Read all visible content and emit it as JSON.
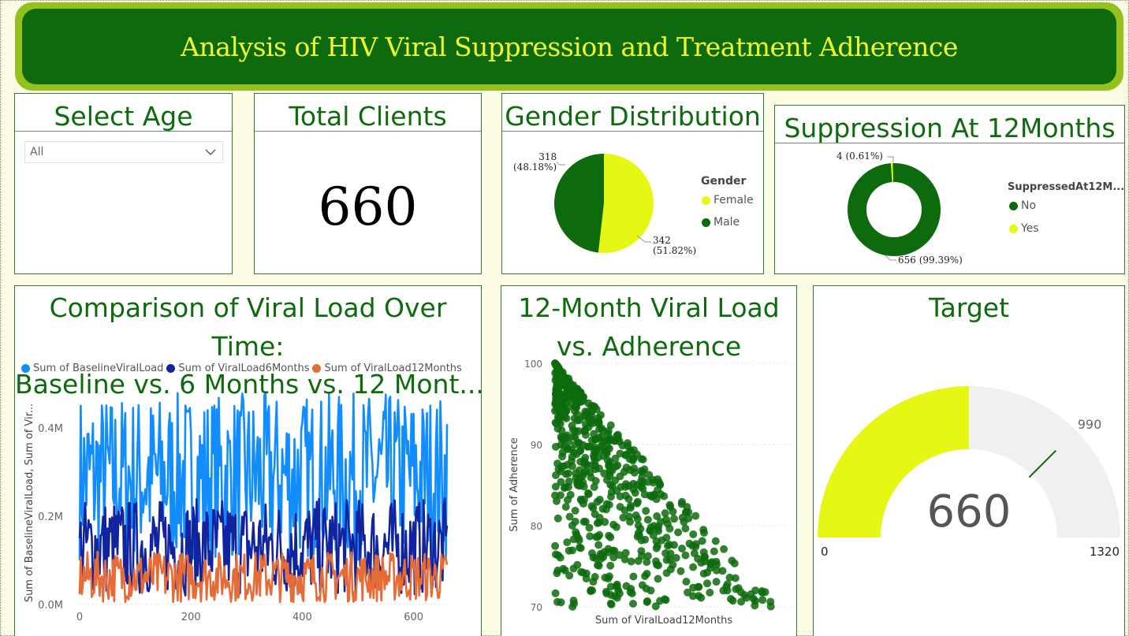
{
  "header": {
    "title": "Analysis of HIV Viral Suppression and Treatment Adherence"
  },
  "age_filter": {
    "title": "Select Age",
    "selected": "All"
  },
  "total_clients": {
    "title": "Total Clients",
    "value": "660"
  },
  "gender": {
    "title": "Gender Distribution",
    "legend_title": "Gender",
    "items": [
      {
        "label": "Female",
        "count": "342",
        "pct": "(51.82%)",
        "value": 342,
        "color": "#e6f714"
      },
      {
        "label": "Male",
        "count": "318",
        "pct": "(48.18%)",
        "value": 318,
        "color": "#0d6b0d"
      }
    ]
  },
  "suppression": {
    "title": "Suppression At 12Months",
    "legend_title": "SuppressedAt12M...",
    "items": [
      {
        "label": "No",
        "text": "656 (99.39%)",
        "value": 656,
        "color": "#0d6b0d"
      },
      {
        "label": "Yes",
        "text": "4 (0.61%)",
        "value": 4,
        "color": "#e6f714"
      }
    ]
  },
  "line_chart": {
    "title_lines": [
      "Comparison of Viral Load Over",
      "Time:",
      "Baseline vs. 6 Months vs. 12 Mont..."
    ],
    "legend": [
      {
        "label": "Sum of BaselineViralLoad",
        "color": "#118dff"
      },
      {
        "label": "Sum of ViralLoad6Months",
        "color": "#12239e"
      },
      {
        "label": "Sum of ViralLoad12Months",
        "color": "#e66c37"
      }
    ],
    "y_axis_label": "Sum of BaselineViralLoad, Sum of Vir...",
    "y_ticks": [
      "0.4M",
      "0.2M",
      "0.0M"
    ],
    "x_ticks": [
      "0",
      "200",
      "400",
      "600"
    ]
  },
  "scatter": {
    "title_lines": [
      "12-Month Viral Load",
      "vs. Adherence"
    ],
    "x_label": "Sum of ViralLoad12Months",
    "y_label": "Sum of Adherence",
    "y_ticks": [
      "100",
      "90",
      "80",
      "70"
    ]
  },
  "gauge": {
    "title": "Target",
    "value": "660",
    "min": "0",
    "max": "1320",
    "target": "990",
    "value_num": 660,
    "min_num": 0,
    "max_num": 1320,
    "target_num": 990,
    "fill_color": "#e6f714",
    "track_color": "#f0f0f0",
    "target_color": "#0d6b0d"
  },
  "chart_data": [
    {
      "type": "pie",
      "title": "Gender Distribution",
      "categories": [
        "Female",
        "Male"
      ],
      "values": [
        342,
        318
      ],
      "legend": "right"
    },
    {
      "type": "pie",
      "title": "Suppression At 12Months",
      "categories": [
        "No",
        "Yes"
      ],
      "values": [
        656,
        4
      ],
      "legend": "right"
    },
    {
      "type": "line",
      "title": "Comparison of Viral Load Over Time: Baseline vs. 6 Months vs. 12 Mont...",
      "series": [
        {
          "name": "Sum of BaselineViralLoad",
          "range": [
            100000,
            480000
          ]
        },
        {
          "name": "Sum of ViralLoad6Months",
          "range": [
            20000,
            240000
          ]
        },
        {
          "name": "Sum of ViralLoad12Months",
          "range": [
            5000,
            120000
          ]
        }
      ],
      "xlim": [
        0,
        660
      ],
      "ylim": [
        0,
        480000
      ],
      "ylabel": "Sum of BaselineViralLoad, Sum of Vir...",
      "legend": "top"
    },
    {
      "type": "scatter",
      "title": "12-Month Viral Load vs. Adherence",
      "xlabel": "Sum of ViralLoad12Months",
      "ylabel": "Sum of Adherence",
      "ylim": [
        70,
        100
      ],
      "points_count": 660
    }
  ]
}
